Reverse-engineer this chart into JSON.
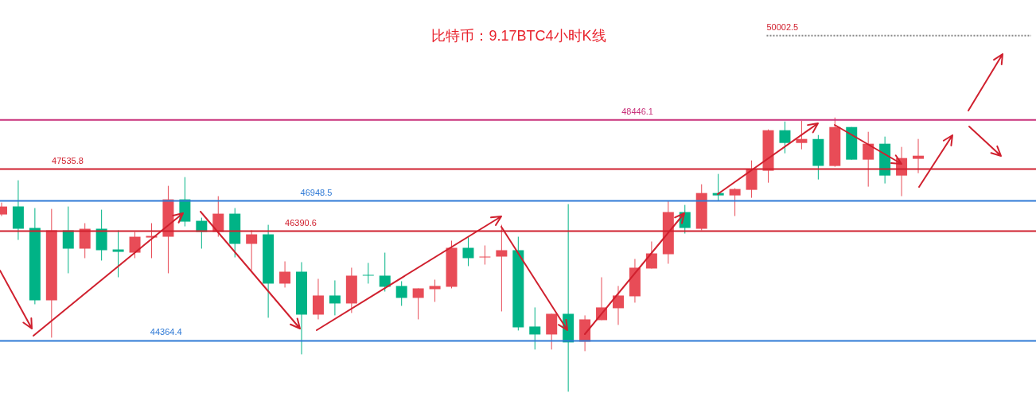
{
  "chart_data": {
    "type": "candlestick",
    "title": "比特币：9.17BTC4小时K线",
    "categories": [
      null,
      null,
      null,
      null,
      null,
      null,
      null,
      null,
      null,
      null,
      null,
      null,
      null,
      null,
      null,
      null,
      null,
      null,
      null,
      null,
      null,
      null,
      null,
      null,
      null,
      null,
      null,
      null,
      null,
      null,
      null,
      null,
      null,
      null,
      null,
      null,
      null,
      null,
      null,
      null,
      null,
      null,
      null,
      null,
      null,
      null,
      null,
      null,
      null,
      null,
      null,
      null,
      null,
      null,
      null,
      null
    ],
    "ohlc": [
      [
        46698,
        46918,
        46669,
        46845
      ],
      [
        46845,
        47329,
        46228,
        46434
      ],
      [
        46449,
        46816,
        45039,
        45113
      ],
      [
        45113,
        46801,
        44423,
        46405
      ],
      [
        46405,
        46845,
        45612,
        46067
      ],
      [
        46067,
        46537,
        45891,
        46434
      ],
      [
        46434,
        46786,
        45847,
        46038
      ],
      [
        46052,
        46405,
        45538,
        46008
      ],
      [
        45993,
        46375,
        45891,
        46287
      ],
      [
        46272,
        46537,
        45891,
        46302
      ],
      [
        46287,
        47227,
        45612,
        46977
      ],
      [
        46977,
        47388,
        46478,
        46566
      ],
      [
        46581,
        46639,
        46067,
        46375
      ],
      [
        46375,
        47036,
        46287,
        46713
      ],
      [
        46713,
        46816,
        45905,
        46155
      ],
      [
        46155,
        46405,
        45671,
        46331
      ],
      [
        46331,
        46507,
        44790,
        45421
      ],
      [
        45421,
        45832,
        45348,
        45641
      ],
      [
        45641,
        45817,
        44114,
        44848
      ],
      [
        44848,
        45509,
        44760,
        45201
      ],
      [
        45201,
        45480,
        44834,
        45054
      ],
      [
        45054,
        45715,
        44878,
        45568
      ],
      [
        45582,
        45803,
        45421,
        45568
      ],
      [
        45568,
        45993,
        45274,
        45362
      ],
      [
        45377,
        45465,
        45010,
        45157
      ],
      [
        45157,
        45333,
        44760,
        45333
      ],
      [
        45318,
        45494,
        45083,
        45377
      ],
      [
        45362,
        46214,
        45333,
        46082
      ],
      [
        46082,
        46287,
        45744,
        45891
      ],
      [
        45905,
        46126,
        45773,
        45920
      ],
      [
        45920,
        46507,
        44907,
        46038
      ],
      [
        46038,
        46287,
        44555,
        44614
      ],
      [
        44628,
        44981,
        44203,
        44481
      ],
      [
        44481,
        44863,
        44203,
        44863
      ],
      [
        44863,
        46889,
        43424,
        44335
      ],
      [
        44349,
        44834,
        44173,
        44760
      ],
      [
        44746,
        45538,
        44746,
        44981
      ],
      [
        44966,
        45377,
        44658,
        45201
      ],
      [
        45186,
        45876,
        45069,
        45715
      ],
      [
        45700,
        46199,
        45700,
        45979
      ],
      [
        45964,
        46948,
        45788,
        46742
      ],
      [
        46742,
        46874,
        46346,
        46449
      ],
      [
        46434,
        47256,
        46405,
        47094
      ],
      [
        47094,
        47447,
        46948,
        47050
      ],
      [
        47050,
        47183,
        46669,
        47168
      ],
      [
        47153,
        47696,
        47006,
        47535
      ],
      [
        47506,
        48269,
        47285,
        48254
      ],
      [
        48254,
        48416,
        47828,
        48019
      ],
      [
        48019,
        48430,
        47902,
        48093
      ],
      [
        48093,
        48166,
        47344,
        47594
      ],
      [
        47594,
        48489,
        47579,
        48313
      ],
      [
        48313,
        48313,
        47711,
        47711
      ],
      [
        47711,
        48225,
        47212,
        48005
      ],
      [
        48005,
        48137,
        47271,
        47417
      ],
      [
        47417,
        47946,
        47036,
        47740
      ],
      [
        47726,
        48093,
        47461,
        47784
      ]
    ],
    "colors": [
      "#e84c57",
      "#00b386",
      "#00b386",
      "#e84c57",
      "#00b386",
      "#e84c57",
      "#00b386",
      "#00b386",
      "#e84c57",
      "#e84c57",
      "#e84c57",
      "#00b386",
      "#00b386",
      "#e84c57",
      "#00b386",
      "#e84c57",
      "#00b386",
      "#e84c57",
      "#00b386",
      "#e84c57",
      "#00b386",
      "#e84c57",
      "#00b386",
      "#00b386",
      "#00b386",
      "#e84c57",
      "#e84c57",
      "#e84c57",
      "#00b386",
      "#e84c57",
      "#e84c57",
      "#00b386",
      "#00b386",
      "#e84c57",
      "#00b386",
      "#e84c57",
      "#e84c57",
      "#e84c57",
      "#e84c57",
      "#e84c57",
      "#e84c57",
      "#00b386",
      "#e84c57",
      "#00b386",
      "#e84c57",
      "#e84c57",
      "#e84c57",
      "#00b386",
      "#e84c57",
      "#00b386",
      "#e84c57",
      "#00b386",
      "#e84c57",
      "#00b386",
      "#e84c57",
      "#e84c57"
    ],
    "ylim": [
      43400,
      50660
    ],
    "ref_lines": [
      {
        "axis": "y",
        "value": 50002.5,
        "label": "50002.5",
        "color": "#888888",
        "line_style": "dotted"
      },
      {
        "axis": "y",
        "value": 48446.1,
        "label": "48446.1",
        "color": "#c8307a",
        "line_style": "solid"
      },
      {
        "axis": "y",
        "value": 47535.8,
        "label": "47535.8",
        "color": "#d0202e",
        "line_style": "solid"
      },
      {
        "axis": "y",
        "value": 46948.5,
        "label": "46948.5",
        "color": "#2f7ad6",
        "line_style": "solid"
      },
      {
        "axis": "y",
        "value": 46390.6,
        "label": "46390.6",
        "color": "#d0202e",
        "line_style": "solid"
      },
      {
        "axis": "y",
        "value": 44364.4,
        "label": "44364.4",
        "color": "#2f7ad6",
        "line_style": "solid"
      }
    ]
  }
}
